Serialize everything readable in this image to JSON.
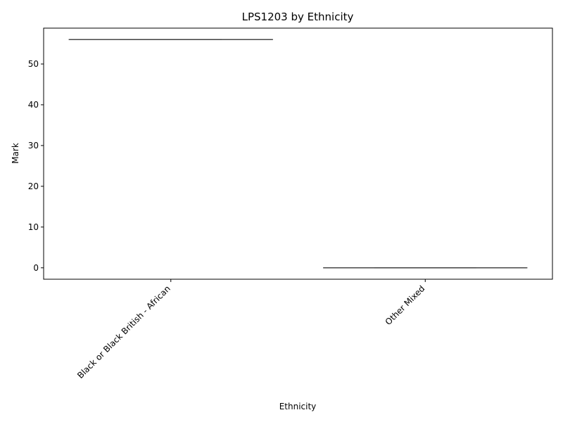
{
  "chart_data": {
    "type": "box",
    "title": "LPS1203 by Ethnicity",
    "xlabel": "Ethnicity",
    "ylabel": "Mark",
    "categories": [
      "Black or Black British - African",
      "Other Mixed"
    ],
    "series": [
      {
        "values": [
          {
            "min": 56,
            "q1": 56,
            "median": 56,
            "q3": 56,
            "max": 56
          },
          {
            "min": 0,
            "q1": 0,
            "median": 0,
            "q3": 0,
            "max": 0
          }
        ]
      }
    ],
    "ylim": [
      -2.8,
      58.8
    ],
    "yticks": [
      0,
      10,
      20,
      30,
      40,
      50
    ],
    "grid": false,
    "colors": {
      "box_line": "#3f3f3f",
      "axis": "#000000"
    }
  }
}
